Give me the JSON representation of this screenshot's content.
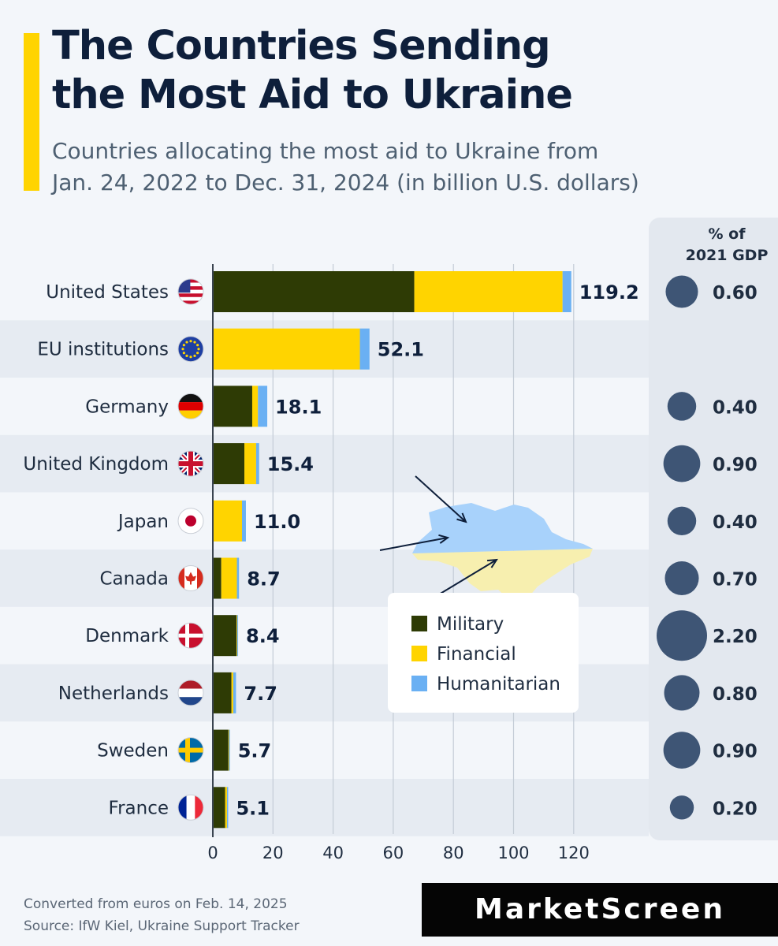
{
  "header": {
    "title_line1": "The Countries Sending",
    "title_line2": "the Most Aid to Ukraine",
    "subtitle_line1": "Countries allocating the most aid to Ukraine from",
    "subtitle_line2": "Jan. 24, 2022 to Dec. 31, 2024 (in billion U.S. dollars)"
  },
  "gdp_header": {
    "line1": "% of",
    "line2": "2021 GDP"
  },
  "footer": {
    "note": "Converted from euros on Feb. 14, 2025",
    "source": "Source: IfW Kiel, Ukraine Support Tracker"
  },
  "brand": {
    "name": "MarketScreen"
  },
  "colors": {
    "military": "#2e3b05",
    "financial": "#ffd400",
    "humanitarian": "#6ab0f3",
    "bubble": "#3e5575",
    "text_dark": "#0e1f3b",
    "row_band": "#e6ebf2"
  },
  "chart_data": {
    "type": "bar",
    "orientation": "horizontal",
    "stacked": true,
    "title": "The Countries Sending the Most Aid to Ukraine",
    "subtitle": "Countries allocating the most aid to Ukraine from Jan. 24, 2022 to Dec. 31, 2024 (in billion U.S. dollars)",
    "categories": [
      "United States",
      "EU institutions",
      "Germany",
      "United Kingdom",
      "Japan",
      "Canada",
      "Denmark",
      "Netherlands",
      "Sweden",
      "France"
    ],
    "flags": [
      "us",
      "eu",
      "de",
      "gb",
      "jp",
      "ca",
      "dk",
      "nl",
      "se",
      "fr"
    ],
    "series": [
      {
        "name": "Military",
        "values": [
          67.0,
          0,
          13.1,
          10.5,
          0,
          2.8,
          7.9,
          6.2,
          5.2,
          4.1
        ]
      },
      {
        "name": "Financial",
        "values": [
          49.3,
          48.9,
          1.9,
          3.9,
          9.7,
          5.2,
          0.2,
          0.6,
          0.2,
          0.6
        ]
      },
      {
        "name": "Humanitarian",
        "values": [
          2.9,
          3.2,
          3.1,
          1.0,
          1.3,
          0.7,
          0.3,
          0.9,
          0.3,
          0.4
        ]
      }
    ],
    "totals": [
      "119.2",
      "52.1",
      "18.1",
      "15.4",
      "11.0",
      "8.7",
      "8.4",
      "7.7",
      "5.7",
      "5.1"
    ],
    "gdp_share": [
      0.6,
      null,
      0.4,
      0.9,
      0.4,
      0.7,
      2.2,
      0.8,
      0.9,
      0.2
    ],
    "gdp_labels": [
      "0.60",
      "",
      "0.40",
      "0.90",
      "0.40",
      "0.70",
      "2.20",
      "0.80",
      "0.90",
      "0.20"
    ],
    "xlim": [
      0,
      120
    ],
    "xticks": [
      "0",
      "20",
      "40",
      "60",
      "80",
      "100",
      "120"
    ],
    "xtick_values": [
      0,
      20,
      40,
      60,
      80,
      100,
      120
    ],
    "grid": true,
    "legend": {
      "position": "center-right",
      "entries": [
        "Military",
        "Financial",
        "Humanitarian"
      ]
    }
  }
}
